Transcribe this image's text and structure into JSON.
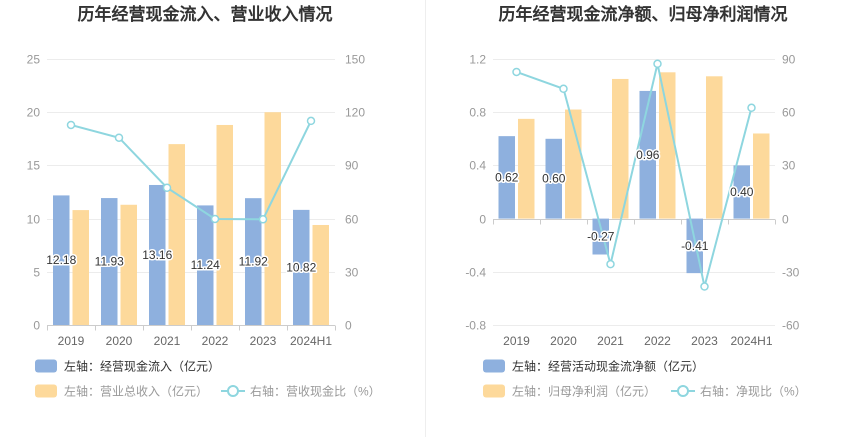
{
  "chart_data": [
    {
      "type": "bar",
      "title": "历年经营现金流入、营业收入情况",
      "categories": [
        "2019",
        "2020",
        "2021",
        "2022",
        "2023",
        "2024H1"
      ],
      "y_left": {
        "range": [
          0,
          25
        ],
        "ticks": [
          0,
          5,
          10,
          15,
          20,
          25
        ]
      },
      "y_right": {
        "range": [
          0,
          150
        ],
        "ticks": [
          0,
          30,
          60,
          90,
          120,
          150
        ]
      },
      "grid": true,
      "legend": "bottom-left",
      "series": [
        {
          "name": "左轴：经营现金流入（亿元）",
          "type": "bar",
          "axis": "left",
          "color": "#8EB0DE",
          "data_labels": true,
          "values": [
            12.18,
            11.93,
            13.16,
            11.24,
            11.92,
            10.82
          ]
        },
        {
          "name": "左轴：营业总收入（亿元）",
          "type": "bar",
          "axis": "left",
          "color": "#FDD99B",
          "data_labels": false,
          "values": [
            10.8,
            11.3,
            17.0,
            18.8,
            20.0,
            9.4
          ]
        },
        {
          "name": "右轴：营收现金比（%）",
          "type": "line",
          "axis": "right",
          "color": "#8ED6DF",
          "data_labels": false,
          "values": [
            112.8,
            105.6,
            77.4,
            59.8,
            59.6,
            115.1
          ]
        }
      ]
    },
    {
      "type": "bar",
      "title": "历年经营现金流净额、归母净利润情况",
      "categories": [
        "2019",
        "2020",
        "2021",
        "2022",
        "2023",
        "2024H1"
      ],
      "y_left": {
        "range": [
          -0.8,
          1.2
        ],
        "ticks": [
          -0.8,
          -0.4,
          0,
          0.4,
          0.8,
          1.2
        ]
      },
      "y_right": {
        "range": [
          -60,
          90
        ],
        "ticks": [
          -60,
          -30,
          0,
          30,
          60,
          90
        ]
      },
      "grid": true,
      "legend": "bottom-left",
      "series": [
        {
          "name": "左轴：经营活动现金流净额（亿元）",
          "type": "bar",
          "axis": "left",
          "color": "#8EB0DE",
          "data_labels": true,
          "values": [
            0.62,
            0.6,
            -0.27,
            0.96,
            -0.41,
            0.4
          ]
        },
        {
          "name": "左轴：归母净利润（亿元）",
          "type": "bar",
          "axis": "left",
          "color": "#FDD99B",
          "data_labels": false,
          "values": [
            0.75,
            0.82,
            1.05,
            1.1,
            1.07,
            0.64
          ]
        },
        {
          "name": "右轴：净现比（%）",
          "type": "line",
          "axis": "right",
          "color": "#8ED6DF",
          "data_labels": false,
          "values": [
            82.7,
            73.2,
            -25.7,
            87.3,
            -38.3,
            62.5
          ]
        }
      ]
    }
  ]
}
